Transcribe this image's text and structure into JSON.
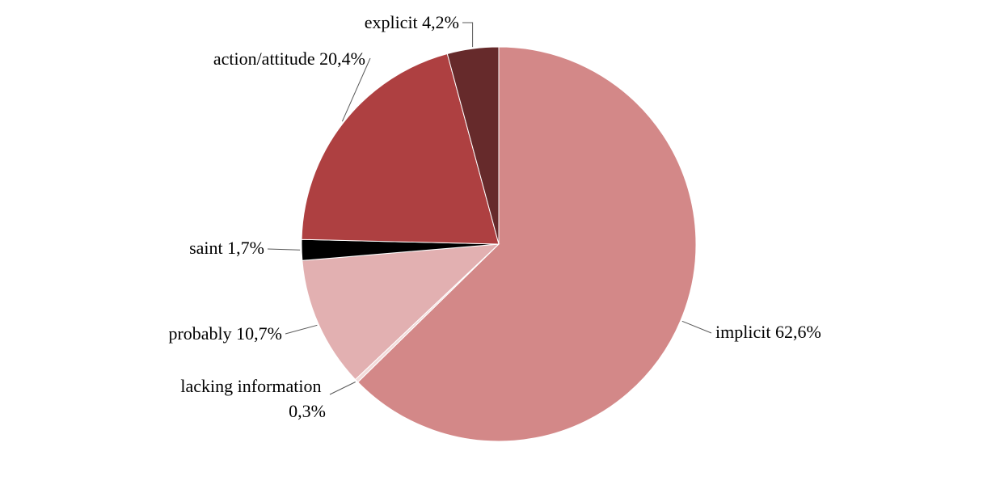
{
  "chart_data": {
    "type": "pie",
    "slices": [
      {
        "label": "implicit",
        "value_text": "62,6%",
        "value": 62.6,
        "color": "#d38888"
      },
      {
        "label": "lacking information",
        "value_text": "0,3%",
        "value": 0.3,
        "color": "#f2dcdb"
      },
      {
        "label": "probably",
        "value_text": "10,7%",
        "value": 10.7,
        "color": "#e2b0b1"
      },
      {
        "label": "saint",
        "value_text": "1,7%",
        "value": 1.7,
        "color": "#000000"
      },
      {
        "label": "action/attitude",
        "value_text": "20,4%",
        "value": 20.4,
        "color": "#ae4041"
      },
      {
        "label": "explicit",
        "value_text": "4,2%",
        "value": 4.2,
        "color": "#662a2b"
      }
    ],
    "start_angle": "12 o'clock",
    "direction": "clockwise",
    "legend": "none",
    "data_labels": "outside with leader lines"
  }
}
